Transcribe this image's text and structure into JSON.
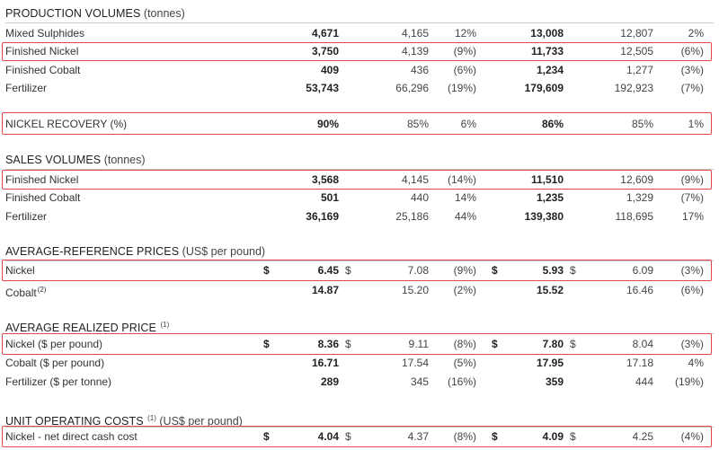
{
  "production": {
    "title": "PRODUCTION VOLUMES",
    "unit": "(tonnes)",
    "rows": [
      {
        "label": "Mixed Sulphides",
        "c1": "4,671",
        "c2": "4,165",
        "c3": "12%",
        "c4": "13,008",
        "c5": "12,807",
        "c6": "2%"
      },
      {
        "label": "Finished Nickel",
        "c1": "3,750",
        "c2": "4,139",
        "c3": "(9%)",
        "c4": "11,733",
        "c5": "12,505",
        "c6": "(6%)"
      },
      {
        "label": "Finished Cobalt",
        "c1": "409",
        "c2": "436",
        "c3": "(6%)",
        "c4": "1,234",
        "c5": "1,277",
        "c6": "(3%)"
      },
      {
        "label": "Fertilizer",
        "c1": "53,743",
        "c2": "66,296",
        "c3": "(19%)",
        "c4": "179,609",
        "c5": "192,923",
        "c6": "(7%)"
      }
    ]
  },
  "recovery": {
    "label_main": "NICKEL RECOVERY",
    "label_unit": "(%)",
    "c1": "90%",
    "c2": "85%",
    "c3": "6%",
    "c4": "86%",
    "c5": "85%",
    "c6": "1%"
  },
  "sales": {
    "title": "SALES VOLUMES",
    "unit": "(tonnes)",
    "rows": [
      {
        "label": "Finished Nickel",
        "c1": "3,568",
        "c2": "4,145",
        "c3": "(14%)",
        "c4": "11,510",
        "c5": "12,609",
        "c6": "(9%)"
      },
      {
        "label": "Finished Cobalt",
        "c1": "501",
        "c2": "440",
        "c3": "14%",
        "c4": "1,235",
        "c5": "1,329",
        "c6": "(7%)"
      },
      {
        "label": "Fertilizer",
        "c1": "36,169",
        "c2": "25,186",
        "c3": "44%",
        "c4": "139,380",
        "c5": "118,695",
        "c6": "17%"
      }
    ]
  },
  "ref_prices": {
    "title": "AVERAGE-REFERENCE PRICES",
    "unit": "(US$ per pound)",
    "rows": [
      {
        "label": "Nickel",
        "d1": "$",
        "c1": "6.45",
        "d2": "$",
        "c2": "7.08",
        "c3": "(9%)",
        "d4": "$",
        "c4": "5.93",
        "d5": "$",
        "c5": "6.09",
        "c6": "(3%)"
      },
      {
        "label": "Cobalt",
        "note": "(2)",
        "c1": "14.87",
        "c2": "15.20",
        "c3": "(2%)",
        "c4": "15.52",
        "c5": "16.46",
        "c6": "(6%)"
      }
    ]
  },
  "realized": {
    "title": "AVERAGE REALIZED PRICE",
    "note": "(1)",
    "rows": [
      {
        "label": "Nickel ($ per pound)",
        "d1": "$",
        "c1": "8.36",
        "d2": "$",
        "c2": "9.11",
        "c3": "(8%)",
        "d4": "$",
        "c4": "7.80",
        "d5": "$",
        "c5": "8.04",
        "c6": "(3%)"
      },
      {
        "label": "Cobalt ($ per pound)",
        "c1": "16.71",
        "c2": "17.54",
        "c3": "(5%)",
        "c4": "17.95",
        "c5": "17.18",
        "c6": "4%"
      },
      {
        "label": "Fertilizer ($ per tonne)",
        "c1": "289",
        "c2": "345",
        "c3": "(16%)",
        "c4": "359",
        "c5": "444",
        "c6": "(19%)"
      }
    ]
  },
  "unit_costs": {
    "title": "UNIT OPERATING COSTS",
    "note": "(1)",
    "unit": "(US$ per pound)",
    "rows": [
      {
        "label": "Nickel - net direct cash cost",
        "d1": "$",
        "c1": "4.04",
        "d2": "$",
        "c2": "4.37",
        "c3": "(8%)",
        "d4": "$",
        "c4": "4.09",
        "d5": "$",
        "c5": "4.25",
        "c6": "(4%)"
      }
    ]
  },
  "colors": {
    "highlight": "#e0474c",
    "rule": "#c9c9c9"
  }
}
